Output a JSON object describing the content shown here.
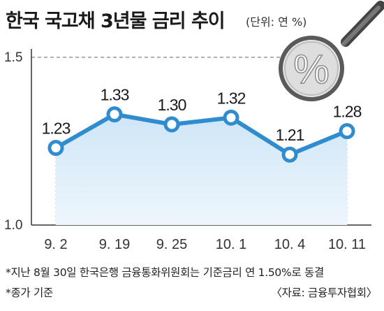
{
  "header": {
    "title": "한국 국고채 3년물 금리 추이",
    "unit": "(단위: 연 %)"
  },
  "badge": {
    "text": "%",
    "icon": "magnifier-icon"
  },
  "notes": {
    "footnote1": "*지난 8월 30일 한국은행 금융통화위원회는 기준금리 연 1.50%로 동결",
    "footnote2": "*종가 기준",
    "source": "〈자료: 금융투자협회〉"
  },
  "colors": {
    "line": "#2e8ccf",
    "area_top": "#cfe6f7",
    "area_bottom": "#eef6fc",
    "grid": "#999999"
  },
  "chart_data": {
    "type": "line",
    "title": "한국 국고채 3년물 금리 추이",
    "categories": [
      "9. 2",
      "9. 19",
      "9. 25",
      "10. 1",
      "10. 4",
      "10. 11"
    ],
    "values": [
      1.23,
      1.33,
      1.3,
      1.32,
      1.21,
      1.28
    ],
    "data_labels": [
      "1.23",
      "1.33",
      "1.30",
      "1.32",
      "1.21",
      "1.28"
    ],
    "y_ticks": [
      "1.5",
      "1.0"
    ],
    "ylim": [
      1.0,
      1.5
    ],
    "grid": true,
    "area_fill": true
  }
}
